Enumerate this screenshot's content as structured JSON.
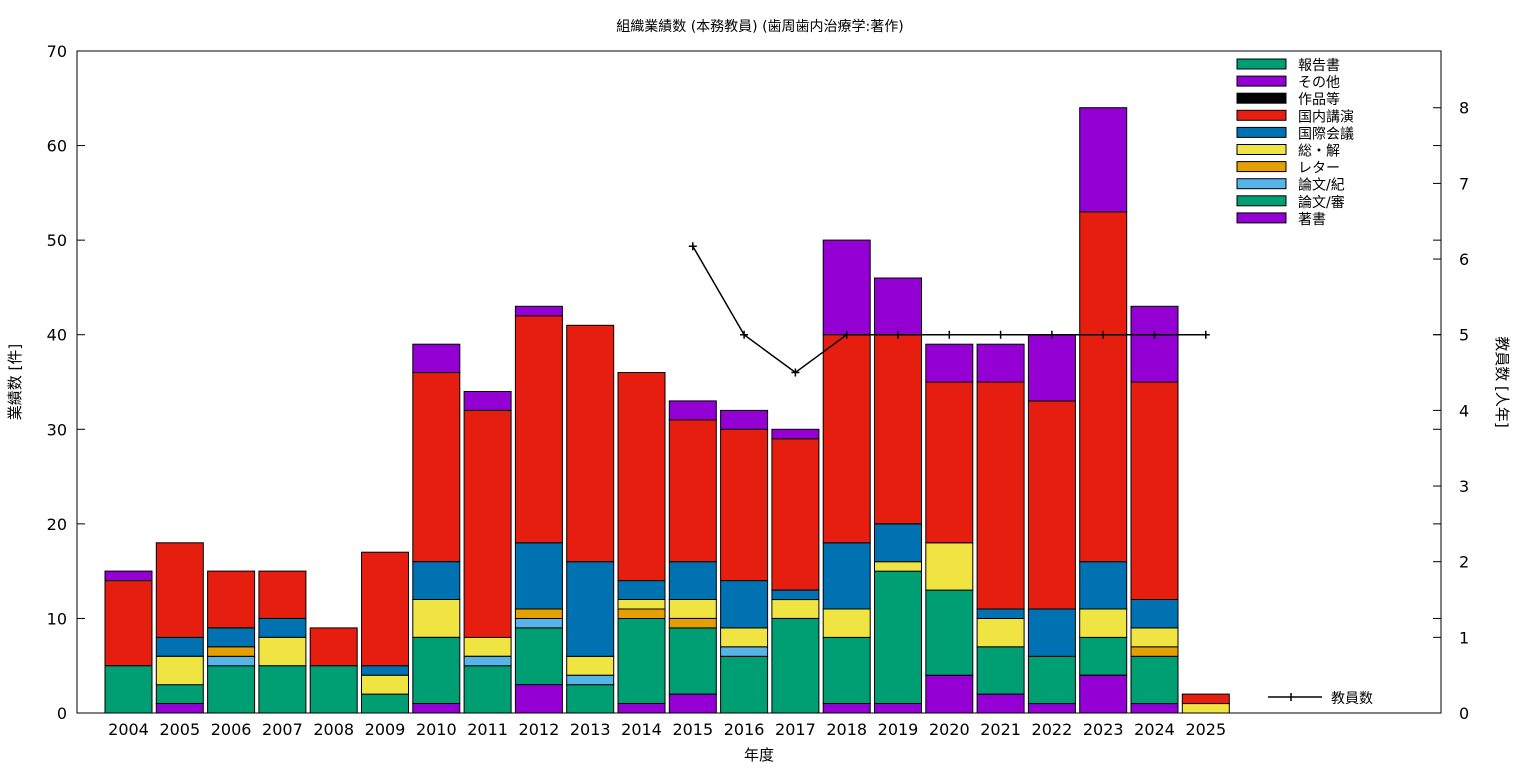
{
  "chart_data": {
    "type": "bar",
    "stacked": true,
    "title": "組織業績数 (本務教員) (歯周歯内治療学:著作)",
    "xlabel": "年度",
    "ylabel": "業績数 [件]",
    "y2label": "教員数 [人年]",
    "ylim": [
      0,
      70
    ],
    "y2lim": [
      0,
      8.75
    ],
    "yticks": [
      0,
      10,
      20,
      30,
      40,
      50,
      60,
      70
    ],
    "y2ticks": [
      0,
      1,
      2,
      3,
      4,
      5,
      6,
      7,
      8
    ],
    "legend_position": "top-right",
    "grid": false,
    "categories": [
      "2004",
      "2005",
      "2006",
      "2007",
      "2008",
      "2009",
      "2010",
      "2011",
      "2012",
      "2013",
      "2014",
      "2015",
      "2016",
      "2017",
      "2018",
      "2019",
      "2020",
      "2021",
      "2022",
      "2023",
      "2024",
      "2025"
    ],
    "series": [
      {
        "name": "著書",
        "color": "#9400d3",
        "values": [
          0,
          1,
          0,
          0,
          0,
          0,
          1,
          0,
          3,
          0,
          1,
          2,
          0,
          0,
          1,
          1,
          4,
          2,
          1,
          4,
          1,
          0
        ]
      },
      {
        "name": "論文/審",
        "color": "#009e73",
        "values": [
          5,
          2,
          5,
          5,
          5,
          2,
          7,
          5,
          6,
          3,
          9,
          7,
          6,
          10,
          7,
          14,
          9,
          5,
          5,
          4,
          5,
          0
        ]
      },
      {
        "name": "論文/紀",
        "color": "#56b4e9",
        "values": [
          0,
          0,
          1,
          0,
          0,
          0,
          0,
          1,
          1,
          1,
          0,
          0,
          1,
          0,
          0,
          0,
          0,
          0,
          0,
          0,
          0,
          0
        ]
      },
      {
        "name": "レター",
        "color": "#e69f00",
        "values": [
          0,
          0,
          1,
          0,
          0,
          0,
          0,
          0,
          1,
          0,
          1,
          1,
          0,
          0,
          0,
          0,
          0,
          0,
          0,
          0,
          1,
          0
        ]
      },
      {
        "name": "総・解",
        "color": "#f0e442",
        "values": [
          0,
          3,
          0,
          3,
          0,
          2,
          4,
          2,
          0,
          2,
          1,
          2,
          2,
          2,
          3,
          1,
          5,
          3,
          0,
          3,
          2,
          1
        ]
      },
      {
        "name": "国際会議",
        "color": "#0072b2",
        "values": [
          0,
          2,
          2,
          2,
          0,
          1,
          4,
          0,
          7,
          10,
          2,
          4,
          5,
          1,
          7,
          4,
          0,
          1,
          5,
          5,
          3,
          0
        ]
      },
      {
        "name": "国内講演",
        "color": "#e51e10",
        "values": [
          9,
          10,
          6,
          5,
          4,
          12,
          20,
          24,
          24,
          25,
          22,
          15,
          16,
          16,
          22,
          20,
          17,
          24,
          22,
          37,
          23,
          1
        ]
      },
      {
        "name": "作品等",
        "color": "#000000",
        "values": [
          0,
          0,
          0,
          0,
          0,
          0,
          0,
          0,
          0,
          0,
          0,
          0,
          0,
          0,
          0,
          0,
          0,
          0,
          0,
          0,
          0,
          0
        ]
      },
      {
        "name": "その他",
        "color": "#9400d3",
        "values": [
          1,
          0,
          0,
          0,
          0,
          0,
          3,
          2,
          1,
          0,
          0,
          2,
          2,
          1,
          10,
          6,
          4,
          4,
          7,
          11,
          8,
          0
        ]
      },
      {
        "name": "報告書",
        "color": "#009e73",
        "values": [
          0,
          0,
          0,
          0,
          0,
          0,
          0,
          0,
          0,
          0,
          0,
          0,
          0,
          0,
          0,
          0,
          0,
          0,
          0,
          0,
          0,
          0
        ]
      }
    ],
    "line_series": {
      "name": "教員数",
      "axis": "y2",
      "x": [
        "2015",
        "2016",
        "2017",
        "2018",
        "2019",
        "2020",
        "2021",
        "2022",
        "2023",
        "2024",
        "2025"
      ],
      "values": [
        6.17,
        5.0,
        4.5,
        5.0,
        5.0,
        5.0,
        5.0,
        5.0,
        5.0,
        5.0,
        5.0
      ]
    }
  }
}
